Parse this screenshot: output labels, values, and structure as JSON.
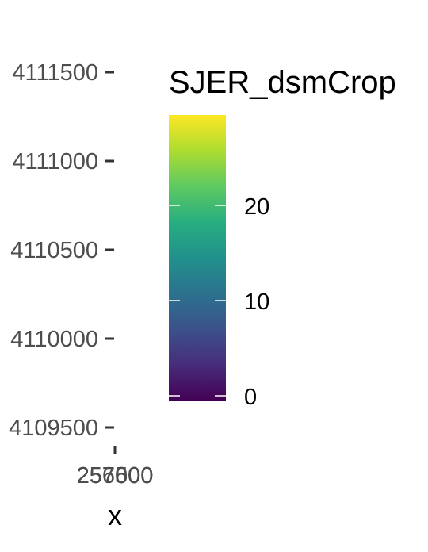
{
  "chart_data": {
    "type": "heatmap",
    "title": "",
    "xlabel": "x",
    "ylabel": "",
    "x_ticks": [
      {
        "value": 256000,
        "label": "256000"
      },
      {
        "value": 257500,
        "label": "257500"
      },
      {
        "value": 257600,
        "label": "257600"
      }
    ],
    "y_ticks": [
      {
        "value": 4109500,
        "label": "4109500"
      },
      {
        "value": 4110000,
        "label": "4110000"
      },
      {
        "value": 4110500,
        "label": "4110500"
      },
      {
        "value": 4111000,
        "label": "4111000"
      },
      {
        "value": 4111500,
        "label": "4111500"
      }
    ],
    "ylim": [
      4109500,
      4111500
    ],
    "colorbar": {
      "title": "SJER_dsmCrop",
      "palette": "viridis",
      "range": [
        -0.5,
        29.5
      ],
      "ticks": [
        0,
        10,
        20
      ],
      "tick_labels": [
        "0",
        "10",
        "20"
      ]
    },
    "grid": false,
    "legend_position": "right"
  }
}
